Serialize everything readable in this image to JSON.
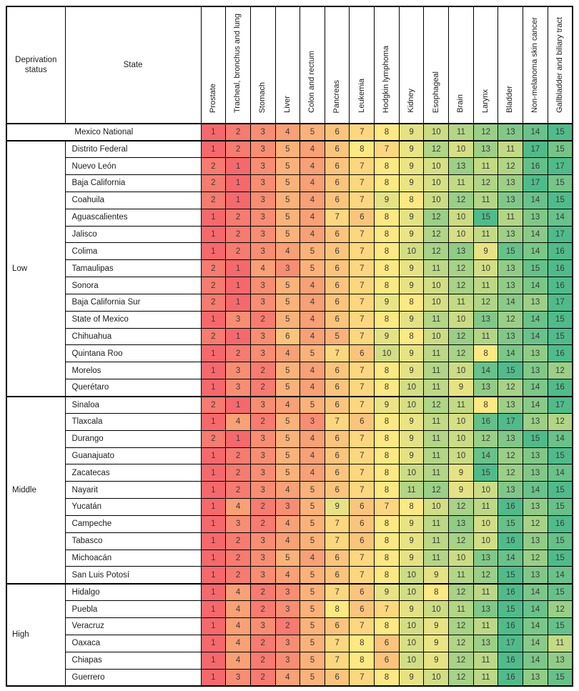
{
  "chart_data": {
    "type": "heatmap",
    "corner": {
      "deprivation": "Deprivation status",
      "state": "State"
    },
    "columns": [
      "Prostate",
      "Tracheal, bronchus and lung",
      "Stomach",
      "Liver",
      "Colon and rectum",
      "Pancreas",
      "Leukemia",
      "Hodgkin lymphoma",
      "Kidney",
      "Esophageal",
      "Brain",
      "Larynx",
      "Bladder",
      "Non-melanoma skin cancer",
      "Gallbladder and biliary tract"
    ],
    "value_range": [
      1,
      17
    ],
    "color_scale": {
      "min_value": 1,
      "mid_value": 8,
      "min_color": "#F5696D",
      "mid_color": "#FDE983",
      "max_color": "#50BB8A"
    },
    "grid_color": "#000000",
    "value_text_color": "#3A3A3A",
    "groups": [
      {
        "label": "",
        "rows": [
          {
            "state": "Mexico National",
            "values": [
              1,
              2,
              3,
              4,
              5,
              6,
              7,
              8,
              9,
              10,
              11,
              12,
              13,
              14,
              15
            ]
          }
        ]
      },
      {
        "label": "Low",
        "rows": [
          {
            "state": "Distrito Federal",
            "values": [
              1,
              2,
              3,
              5,
              4,
              6,
              8,
              7,
              9,
              12,
              10,
              13,
              11,
              17,
              15
            ]
          },
          {
            "state": "Nuevo León",
            "values": [
              2,
              1,
              3,
              5,
              4,
              6,
              7,
              8,
              9,
              10,
              13,
              11,
              12,
              16,
              17
            ]
          },
          {
            "state": "Baja California",
            "values": [
              2,
              1,
              3,
              5,
              4,
              6,
              7,
              8,
              9,
              10,
              11,
              12,
              13,
              17,
              15
            ]
          },
          {
            "state": "Coahuila",
            "values": [
              2,
              1,
              3,
              5,
              4,
              6,
              7,
              9,
              8,
              10,
              12,
              11,
              13,
              14,
              15
            ]
          },
          {
            "state": "Aguascalientes",
            "values": [
              1,
              2,
              3,
              5,
              4,
              7,
              6,
              8,
              9,
              12,
              10,
              15,
              11,
              13,
              14
            ]
          },
          {
            "state": "Jalisco",
            "values": [
              1,
              2,
              3,
              5,
              4,
              6,
              7,
              8,
              9,
              12,
              10,
              11,
              13,
              14,
              17
            ]
          },
          {
            "state": "Colima",
            "values": [
              1,
              2,
              3,
              4,
              5,
              6,
              7,
              8,
              10,
              12,
              13,
              9,
              15,
              14,
              16
            ]
          },
          {
            "state": "Tamaulipas",
            "values": [
              2,
              1,
              4,
              3,
              5,
              6,
              7,
              8,
              9,
              11,
              12,
              10,
              13,
              15,
              16
            ]
          },
          {
            "state": "Sonora",
            "values": [
              2,
              1,
              3,
              5,
              4,
              6,
              7,
              8,
              9,
              10,
              12,
              11,
              13,
              14,
              16
            ]
          },
          {
            "state": "Baja California Sur",
            "values": [
              2,
              1,
              3,
              5,
              4,
              6,
              7,
              9,
              8,
              10,
              11,
              12,
              14,
              13,
              17
            ]
          },
          {
            "state": "State of Mexico",
            "values": [
              1,
              3,
              2,
              5,
              4,
              6,
              7,
              8,
              9,
              11,
              10,
              13,
              12,
              14,
              15
            ]
          },
          {
            "state": "Chihuahua",
            "values": [
              2,
              1,
              3,
              6,
              4,
              5,
              7,
              9,
              8,
              10,
              12,
              11,
              13,
              14,
              15
            ]
          },
          {
            "state": "Quintana Roo",
            "values": [
              1,
              2,
              3,
              4,
              5,
              7,
              6,
              10,
              9,
              11,
              12,
              8,
              14,
              13,
              16
            ]
          },
          {
            "state": "Morelos",
            "values": [
              1,
              3,
              2,
              5,
              4,
              6,
              7,
              8,
              9,
              11,
              10,
              14,
              15,
              13,
              12
            ]
          },
          {
            "state": "Querétaro",
            "values": [
              1,
              3,
              2,
              5,
              4,
              6,
              7,
              8,
              10,
              11,
              9,
              13,
              12,
              14,
              16
            ]
          }
        ]
      },
      {
        "label": "Middle",
        "rows": [
          {
            "state": "Sinaloa",
            "values": [
              2,
              1,
              3,
              4,
              5,
              6,
              7,
              9,
              10,
              12,
              11,
              8,
              13,
              14,
              17
            ]
          },
          {
            "state": "Tlaxcala",
            "values": [
              1,
              4,
              2,
              5,
              3,
              7,
              6,
              8,
              9,
              11,
              10,
              16,
              17,
              13,
              12
            ]
          },
          {
            "state": "Durango",
            "values": [
              2,
              1,
              3,
              5,
              4,
              6,
              7,
              8,
              9,
              11,
              10,
              12,
              13,
              15,
              14
            ]
          },
          {
            "state": "Guanajuato",
            "values": [
              1,
              2,
              3,
              5,
              4,
              6,
              7,
              8,
              9,
              11,
              10,
              14,
              12,
              13,
              15
            ]
          },
          {
            "state": "Zacatecas",
            "values": [
              1,
              2,
              3,
              5,
              4,
              6,
              7,
              8,
              10,
              11,
              9,
              15,
              12,
              13,
              14
            ]
          },
          {
            "state": "Nayarit",
            "values": [
              1,
              2,
              3,
              4,
              5,
              6,
              7,
              8,
              11,
              12,
              9,
              10,
              13,
              14,
              15
            ]
          },
          {
            "state": "Yucatán",
            "values": [
              1,
              4,
              2,
              3,
              5,
              9,
              6,
              7,
              8,
              10,
              12,
              11,
              16,
              13,
              15
            ]
          },
          {
            "state": "Campeche",
            "values": [
              1,
              3,
              2,
              4,
              5,
              7,
              6,
              8,
              9,
              11,
              13,
              10,
              15,
              12,
              16
            ]
          },
          {
            "state": "Tabasco",
            "values": [
              1,
              2,
              3,
              4,
              5,
              7,
              6,
              8,
              9,
              11,
              12,
              10,
              16,
              13,
              15
            ]
          },
          {
            "state": "Michoacán",
            "values": [
              1,
              2,
              3,
              5,
              4,
              6,
              7,
              8,
              9,
              11,
              10,
              13,
              14,
              12,
              15
            ]
          },
          {
            "state": "San Luis Potosí",
            "values": [
              1,
              2,
              3,
              4,
              5,
              6,
              7,
              8,
              10,
              9,
              11,
              12,
              15,
              13,
              14
            ]
          }
        ]
      },
      {
        "label": "High",
        "rows": [
          {
            "state": "Hidalgo",
            "values": [
              1,
              4,
              2,
              3,
              5,
              7,
              6,
              9,
              10,
              8,
              12,
              11,
              16,
              14,
              15
            ]
          },
          {
            "state": "Puebla",
            "values": [
              1,
              4,
              2,
              3,
              5,
              8,
              6,
              7,
              9,
              10,
              11,
              13,
              15,
              14,
              12
            ]
          },
          {
            "state": "Veracruz",
            "values": [
              1,
              4,
              3,
              2,
              5,
              6,
              7,
              8,
              10,
              9,
              12,
              11,
              16,
              14,
              15
            ]
          },
          {
            "state": "Oaxaca",
            "values": [
              1,
              4,
              2,
              3,
              5,
              7,
              8,
              6,
              10,
              9,
              12,
              13,
              17,
              14,
              11
            ]
          },
          {
            "state": "Chiapas",
            "values": [
              1,
              4,
              2,
              3,
              5,
              7,
              8,
              6,
              10,
              9,
              12,
              11,
              16,
              14,
              13
            ]
          },
          {
            "state": "Guerrero",
            "values": [
              1,
              3,
              2,
              4,
              5,
              6,
              7,
              8,
              9,
              10,
              12,
              11,
              16,
              13,
              15
            ]
          }
        ]
      }
    ]
  }
}
